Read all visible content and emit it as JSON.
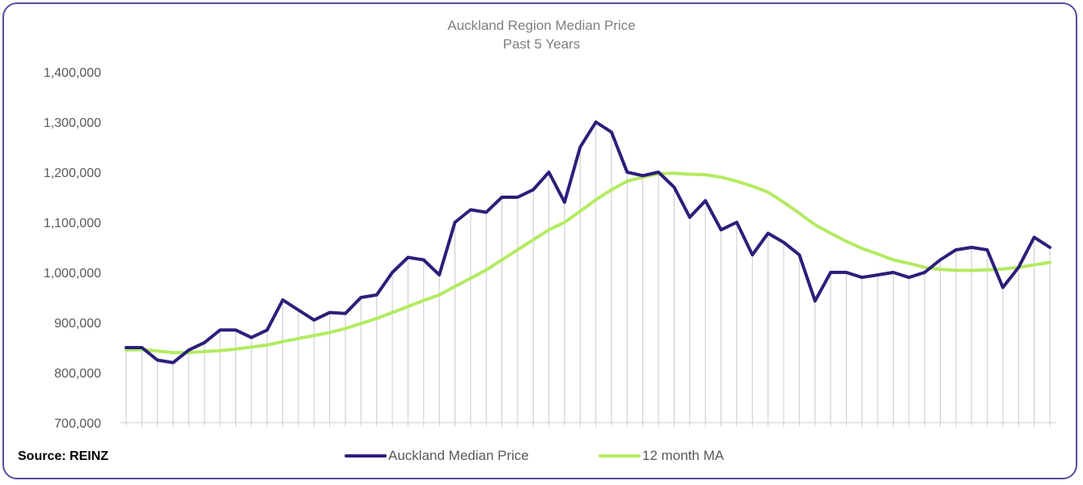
{
  "colors": {
    "frame": "#5b4aa0",
    "median_series": "#2b1f7a",
    "ma_series": "#b4ea62",
    "drop_lines": "#c9c9c9",
    "tick_text": "#595959"
  },
  "source": "Source: REINZ",
  "chart_data": {
    "type": "line",
    "title": "Auckland Region Median Price",
    "subtitle": "Past 5 Years",
    "xlabel": "",
    "ylabel": "",
    "ylim": [
      700000,
      1400000
    ],
    "yticks": [
      700000,
      800000,
      900000,
      1000000,
      1100000,
      1200000,
      1300000,
      1400000
    ],
    "ytick_labels": [
      "700,000",
      "800,000",
      "900,000",
      "1,000,000",
      "1,100,000",
      "1,200,000",
      "1,300,000",
      "1,400,000"
    ],
    "grid": false,
    "drop_lines": true,
    "legend_position": "bottom-center",
    "series": [
      {
        "name": "Auckland Median Price",
        "color": "#2b1f7a",
        "values": [
          850000,
          850000,
          825000,
          820000,
          845000,
          860000,
          885000,
          885000,
          870000,
          885000,
          945000,
          925000,
          905000,
          920000,
          918000,
          950000,
          955000,
          1000000,
          1030000,
          1025000,
          995000,
          1100000,
          1125000,
          1120000,
          1150000,
          1150000,
          1165000,
          1200000,
          1140000,
          1250000,
          1300000,
          1280000,
          1200000,
          1193000,
          1200000,
          1170000,
          1110000,
          1143000,
          1085000,
          1100000,
          1035000,
          1078000,
          1060000,
          1035000,
          943000,
          1000000,
          1000000,
          990000,
          995000,
          1000000,
          990000,
          1000000,
          1025000,
          1045000,
          1050000,
          1045000,
          970000,
          1010000,
          1070000,
          1050000
        ]
      },
      {
        "name": "12 month MA",
        "color": "#b4ea62",
        "values": [
          845000,
          846000,
          843000,
          840000,
          840000,
          842000,
          844000,
          847000,
          851000,
          855000,
          862000,
          868000,
          874000,
          880000,
          888000,
          898000,
          908000,
          920000,
          932000,
          944000,
          955000,
          972000,
          988000,
          1005000,
          1025000,
          1045000,
          1065000,
          1085000,
          1100000,
          1122000,
          1145000,
          1165000,
          1182000,
          1190000,
          1197000,
          1198000,
          1196000,
          1195000,
          1190000,
          1182000,
          1172000,
          1160000,
          1140000,
          1118000,
          1095000,
          1078000,
          1062000,
          1048000,
          1037000,
          1025000,
          1018000,
          1010000,
          1006000,
          1004000,
          1004000,
          1005000,
          1007000,
          1010000,
          1015000,
          1020000
        ]
      }
    ]
  }
}
